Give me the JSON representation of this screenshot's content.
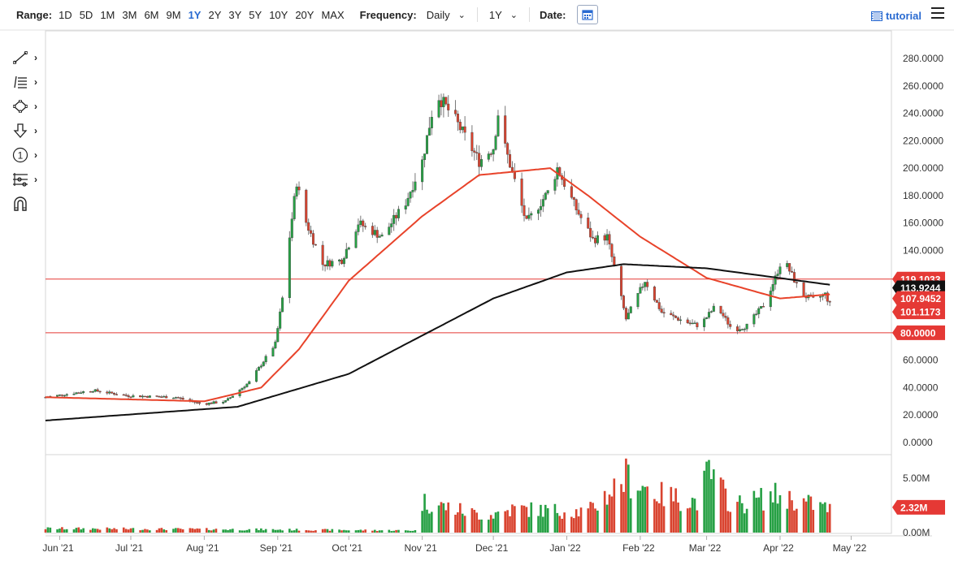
{
  "toolbar": {
    "range_label": "Range:",
    "ranges": [
      "1D",
      "5D",
      "1M",
      "3M",
      "6M",
      "9M",
      "1Y",
      "2Y",
      "3Y",
      "5Y",
      "10Y",
      "20Y",
      "MAX"
    ],
    "active_range": "1Y",
    "frequency_label": "Frequency:",
    "frequency_value": "Daily",
    "period_value": "1Y",
    "date_label": "Date:",
    "tutorial_label": "tutorial"
  },
  "drawing_tools": [
    {
      "name": "trendline-tool",
      "icon": "line-icon"
    },
    {
      "name": "fib-tool",
      "icon": "fibonacci-icon"
    },
    {
      "name": "shape-tool",
      "icon": "shape-icon"
    },
    {
      "name": "arrow-tool",
      "icon": "arrow-down-icon"
    },
    {
      "name": "annotation-tool",
      "icon": "numbered-circle-icon",
      "glyph": "1"
    },
    {
      "name": "measure-tool",
      "icon": "nodes-icon"
    },
    {
      "name": "magnet-tool",
      "icon": "magnet-icon"
    }
  ],
  "chart_data": {
    "type": "candlestick",
    "y_ticks": [
      "280.0000",
      "260.0000",
      "240.0000",
      "220.0000",
      "200.0000",
      "180.0000",
      "160.0000",
      "140.0000",
      "120.0000",
      "100.0000",
      "80.0000",
      "60.0000",
      "40.0000",
      "20.0000",
      "0.0000"
    ],
    "ylim": [
      0,
      280
    ],
    "x_ticks": [
      "Jun '21",
      "Jul '21",
      "Aug '21",
      "Sep '21",
      "Oct '21",
      "Nov '21",
      "Dec '21",
      "Jan '22",
      "Feb '22",
      "Mar '22",
      "Apr '22",
      "May '22"
    ],
    "price_path": [
      [
        "2021-05-26",
        33
      ],
      [
        "2021-06-15",
        38
      ],
      [
        "2021-06-30",
        34
      ],
      [
        "2021-07-20",
        33
      ],
      [
        "2021-07-31",
        28
      ],
      [
        "2021-08-10",
        30
      ],
      [
        "2021-08-20",
        44
      ],
      [
        "2021-08-31",
        72
      ],
      [
        "2021-09-03",
        105
      ],
      [
        "2021-09-06",
        150
      ],
      [
        "2021-09-09",
        190
      ],
      [
        "2021-09-12",
        165
      ],
      [
        "2021-09-20",
        130
      ],
      [
        "2021-09-28",
        133
      ],
      [
        "2021-10-05",
        160
      ],
      [
        "2021-10-15",
        150
      ],
      [
        "2021-10-25",
        175
      ],
      [
        "2021-11-01",
        205
      ],
      [
        "2021-11-05",
        240
      ],
      [
        "2021-11-08",
        252
      ],
      [
        "2021-11-15",
        235
      ],
      [
        "2021-11-25",
        205
      ],
      [
        "2021-12-01",
        215
      ],
      [
        "2021-12-03",
        240
      ],
      [
        "2021-12-06",
        215
      ],
      [
        "2021-12-15",
        160
      ],
      [
        "2021-12-25",
        185
      ],
      [
        "2021-12-28",
        200
      ],
      [
        "2022-01-05",
        170
      ],
      [
        "2022-01-12",
        148
      ],
      [
        "2022-01-18",
        150
      ],
      [
        "2022-01-22",
        120
      ],
      [
        "2022-01-26",
        90
      ],
      [
        "2022-02-03",
        118
      ],
      [
        "2022-02-10",
        95
      ],
      [
        "2022-02-20",
        88
      ],
      [
        "2022-02-26",
        85
      ],
      [
        "2022-03-05",
        100
      ],
      [
        "2022-03-12",
        82
      ],
      [
        "2022-03-18",
        85
      ],
      [
        "2022-03-25",
        100
      ],
      [
        "2022-03-30",
        120
      ],
      [
        "2022-04-02",
        135
      ],
      [
        "2022-04-06",
        122
      ],
      [
        "2022-04-10",
        108
      ],
      [
        "2022-04-15",
        104
      ],
      [
        "2022-04-20",
        108
      ],
      [
        "2022-04-22",
        101
      ]
    ],
    "sma_fast": [
      [
        "2021-05-26",
        33
      ],
      [
        "2021-08-01",
        30
      ],
      [
        "2021-08-25",
        40
      ],
      [
        "2021-09-10",
        68
      ],
      [
        "2021-10-01",
        118
      ],
      [
        "2021-11-01",
        165
      ],
      [
        "2021-11-25",
        195
      ],
      [
        "2021-12-25",
        200
      ],
      [
        "2022-01-10",
        180
      ],
      [
        "2022-02-01",
        150
      ],
      [
        "2022-03-01",
        120
      ],
      [
        "2022-04-01",
        105
      ],
      [
        "2022-04-22",
        108
      ]
    ],
    "sma_slow": [
      [
        "2021-05-26",
        16
      ],
      [
        "2021-08-15",
        26
      ],
      [
        "2021-10-01",
        50
      ],
      [
        "2021-11-01",
        78
      ],
      [
        "2021-12-01",
        105
      ],
      [
        "2022-01-01",
        124
      ],
      [
        "2022-01-25",
        130
      ],
      [
        "2022-03-01",
        127
      ],
      [
        "2022-04-22",
        115
      ]
    ],
    "horizontal_lines": [
      {
        "value": 119.1033,
        "label": "119.1033",
        "color": "#e53935"
      },
      {
        "value": 80.0,
        "label": "80.0000",
        "color": "#e53935"
      }
    ],
    "price_tags": [
      {
        "value": 113.9244,
        "label": "113.9244",
        "color": "#111111"
      },
      {
        "value": 107.9452,
        "label": "107.9452",
        "color": "#e53935"
      },
      {
        "value": 101.1173,
        "label": "101.1173",
        "color": "#e53935"
      }
    ],
    "volume": {
      "ticks": [
        "5.00M",
        "2.32M",
        "0.00M"
      ],
      "ylim": [
        0,
        5.0
      ],
      "last_value": "2.32M",
      "path": [
        [
          "2021-05-26",
          0.4
        ],
        [
          "2021-08-25",
          0.3
        ],
        [
          "2021-10-31",
          0.2
        ],
        [
          "2021-11-01",
          3.0
        ],
        [
          "2021-11-28",
          1.6
        ],
        [
          "2021-12-10",
          2.3
        ],
        [
          "2022-01-10",
          2.0
        ],
        [
          "2022-01-26",
          5.4
        ],
        [
          "2022-02-10",
          3.6
        ],
        [
          "2022-02-25",
          3.0
        ],
        [
          "2022-03-02",
          5.8
        ],
        [
          "2022-03-12",
          2.6
        ],
        [
          "2022-03-30",
          3.6
        ],
        [
          "2022-04-22",
          2.32
        ]
      ]
    },
    "colors": {
      "up": "#26a044",
      "down": "#d9432f",
      "fast_ma": "#e8432a",
      "slow_ma": "#111111"
    }
  }
}
